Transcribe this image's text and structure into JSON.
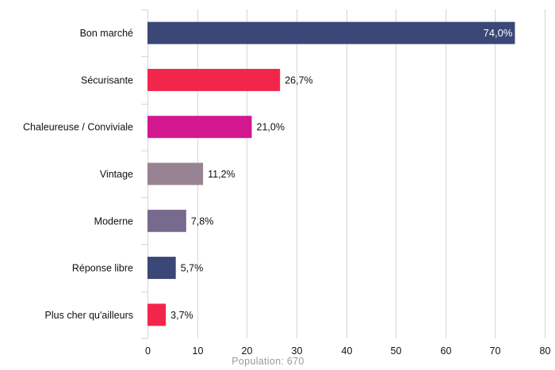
{
  "chart_data": {
    "type": "bar",
    "orientation": "horizontal",
    "categories": [
      "Bon marché",
      "Sécurisante",
      "Chaleureuse / Conviviale",
      "Vintage",
      "Moderne",
      "Réponse libre",
      "Plus cher qu'ailleurs"
    ],
    "values": [
      74.0,
      26.7,
      21.0,
      11.2,
      7.8,
      5.7,
      3.7
    ],
    "value_labels": [
      "74,0%",
      "26,7%",
      "21,0%",
      "11,2%",
      "7,8%",
      "5,7%",
      "3,7%"
    ],
    "colors": [
      "#3a4777",
      "#f2264b",
      "#d3178f",
      "#978392",
      "#776a8e",
      "#3a4777",
      "#f2264b"
    ],
    "xlim": [
      0,
      80
    ],
    "xticks": [
      0,
      10,
      20,
      30,
      40,
      50,
      60,
      70,
      80
    ],
    "xtick_labels": [
      "0",
      "10",
      "20",
      "30",
      "40",
      "50",
      "60",
      "70",
      "80"
    ],
    "grid": "vertical",
    "footer": "Population: 670",
    "title": "",
    "xlabel": "",
    "ylabel": ""
  }
}
